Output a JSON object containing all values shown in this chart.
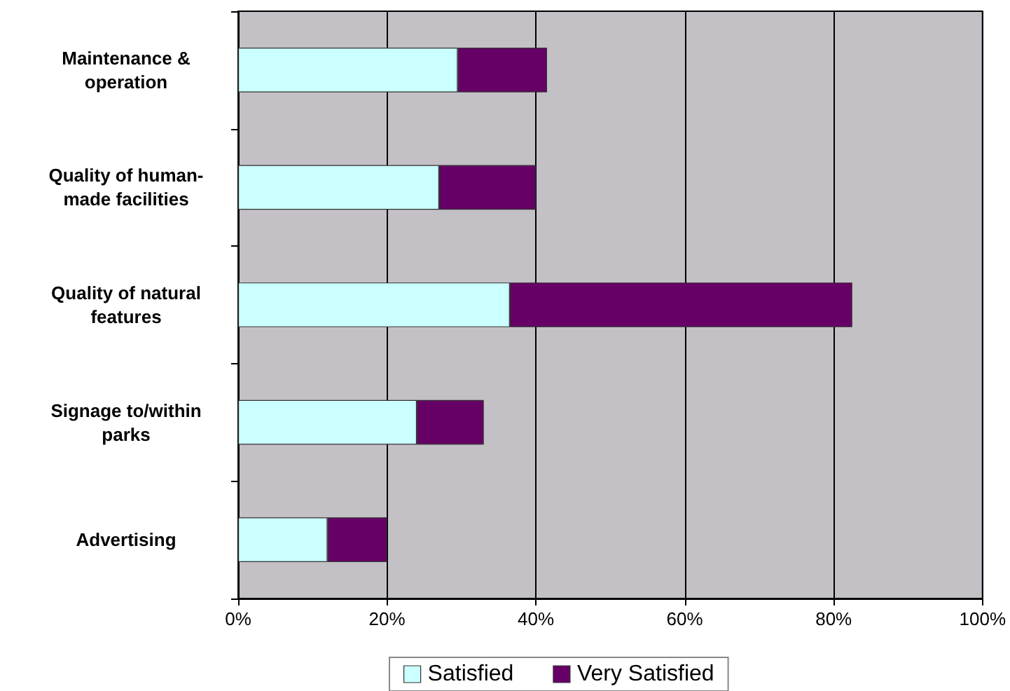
{
  "chart_data": {
    "type": "bar",
    "orientation": "horizontal",
    "stacked": true,
    "categories": [
      "Maintenance &\noperation",
      "Quality of human-\nmade facilities",
      "Quality of natural\nfeatures",
      "Signage to/within\nparks",
      "Advertising"
    ],
    "series": [
      {
        "name": "Satisfied",
        "color": "#ccffff",
        "values": [
          29.5,
          27,
          36.5,
          24,
          12
        ]
      },
      {
        "name": "Very Satisfied",
        "color": "#660066",
        "values": [
          12,
          13,
          46,
          9,
          8
        ]
      }
    ],
    "xlim": [
      0,
      100
    ],
    "xticks": [
      {
        "value": 0,
        "label": "0%"
      },
      {
        "value": 20,
        "label": "20%"
      },
      {
        "value": 40,
        "label": "40%"
      },
      {
        "value": 60,
        "label": "60%"
      },
      {
        "value": 80,
        "label": "80%"
      },
      {
        "value": 100,
        "label": "100%"
      }
    ],
    "grid": "x",
    "legend": "bottom"
  }
}
